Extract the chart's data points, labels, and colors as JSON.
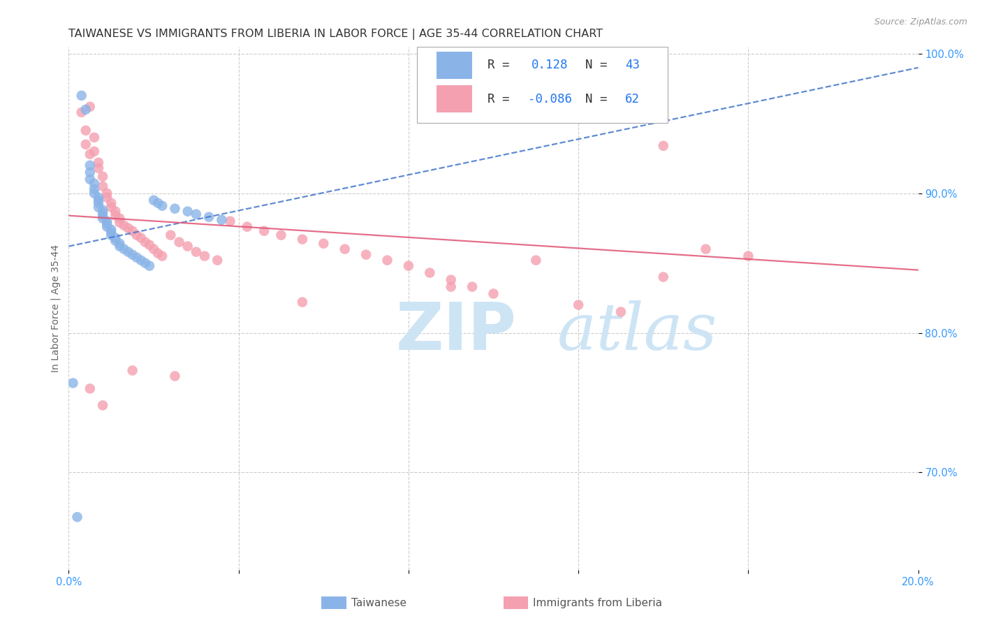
{
  "title": "TAIWANESE VS IMMIGRANTS FROM LIBERIA IN LABOR FORCE | AGE 35-44 CORRELATION CHART",
  "source_text": "Source: ZipAtlas.com",
  "ylabel": "In Labor Force | Age 35-44",
  "xmin": 0.0,
  "xmax": 0.2,
  "ymin": 0.63,
  "ymax": 1.005,
  "yticks": [
    0.7,
    0.8,
    0.9,
    1.0
  ],
  "ytick_labels": [
    "70.0%",
    "80.0%",
    "90.0%",
    "100.0%"
  ],
  "xticks": [
    0.0,
    0.04,
    0.08,
    0.12,
    0.16,
    0.2
  ],
  "xtick_labels": [
    "0.0%",
    "",
    "",
    "",
    "",
    "20.0%"
  ],
  "r_taiwanese": 0.128,
  "n_taiwanese": 43,
  "r_liberia": -0.086,
  "n_liberia": 62,
  "color_taiwanese": "#8ab4e8",
  "color_liberia": "#f4a0b0",
  "color_trend_taiwanese": "#4477cc",
  "color_trend_liberia": "#e05575",
  "background_color": "#ffffff",
  "grid_color": "#cccccc",
  "title_fontsize": 11.5,
  "axis_label_fontsize": 10,
  "tick_fontsize": 10.5,
  "watermark_color": "#cde4f5",
  "tick_color": "#3399ff",
  "source_color": "#999999"
}
